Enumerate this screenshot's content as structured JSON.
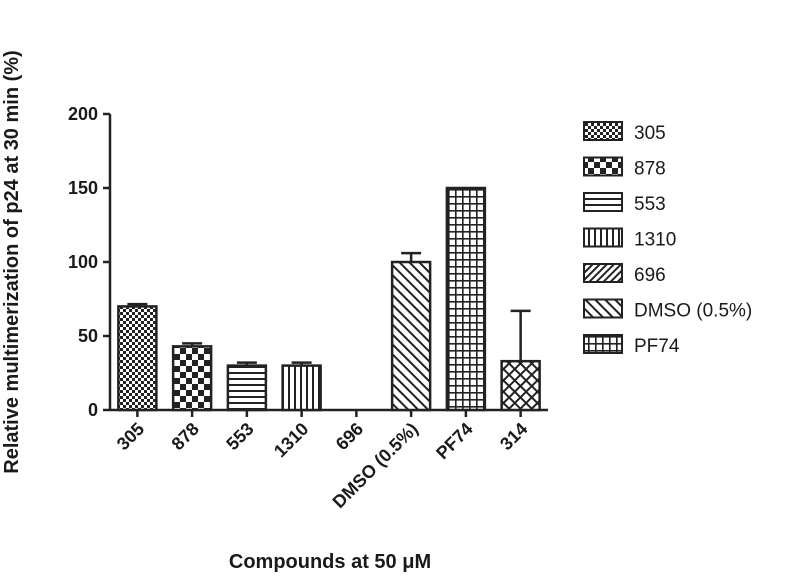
{
  "chart_data": {
    "type": "bar",
    "categories": [
      "305",
      "878",
      "553",
      "1310",
      "696",
      "DMSO (0.5%)",
      "PF74",
      "314"
    ],
    "values": [
      70,
      43,
      30,
      30,
      0,
      100,
      150,
      33
    ],
    "errors": [
      1.5,
      2,
      2,
      2,
      0,
      6,
      0,
      34
    ],
    "patterns": [
      "checker-small",
      "checker-large",
      "horizontal",
      "vertical",
      "diag-fine",
      "diag-back",
      "grid",
      "crosshatch-diag"
    ],
    "ylabel": "Relative multimerization of p24 at 30 min (%)",
    "xlabel": "Compounds at 50 μM",
    "ylim": [
      0,
      200
    ],
    "yticks": [
      0,
      50,
      100,
      150,
      200
    ],
    "legend": {
      "position": "right",
      "entries": [
        "305",
        "878",
        "553",
        "1310",
        "696",
        "DMSO (0.5%)",
        "PF74"
      ],
      "patterns": [
        "checker-small",
        "checker-large",
        "horizontal",
        "vertical",
        "diag-fine",
        "diag-back",
        "grid"
      ]
    }
  }
}
